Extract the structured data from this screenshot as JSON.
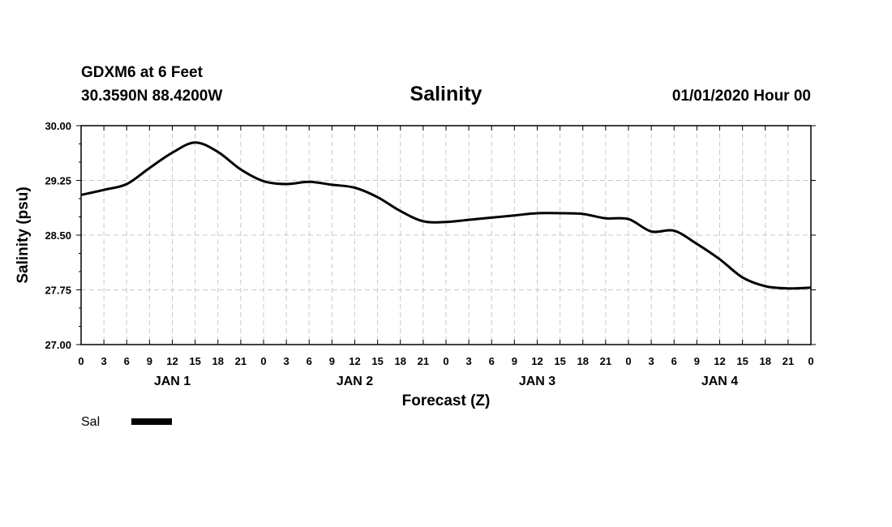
{
  "header": {
    "station_line1": "GDXM6 at 6 Feet",
    "station_line2": "30.3590N 88.4200W",
    "title": "Salinity",
    "datetime": "01/01/2020 Hour 00"
  },
  "chart_data": {
    "type": "line",
    "title": "Salinity",
    "xlabel": "Forecast (Z)",
    "ylabel": "Salinity (psu)",
    "ylim": [
      27.0,
      30.0
    ],
    "xlim": [
      0,
      96
    ],
    "grid": true,
    "yticks": [
      27.0,
      27.75,
      28.5,
      29.25,
      30.0
    ],
    "ytick_labels": [
      "27.00",
      "27.75",
      "28.50",
      "29.25",
      "30.00"
    ],
    "xtick_labels": [
      "0",
      "3",
      "6",
      "9",
      "12",
      "15",
      "18",
      "21",
      "0",
      "3",
      "6",
      "9",
      "12",
      "15",
      "18",
      "21",
      "0",
      "3",
      "6",
      "9",
      "12",
      "15",
      "18",
      "21",
      "0",
      "3",
      "6",
      "9",
      "12",
      "15",
      "18",
      "21",
      "0"
    ],
    "day_labels": [
      {
        "label": "JAN 1",
        "hour": 12
      },
      {
        "label": "JAN 2",
        "hour": 36
      },
      {
        "label": "JAN 3",
        "hour": 60
      },
      {
        "label": "JAN 4",
        "hour": 84
      }
    ],
    "series": [
      {
        "name": "Sal",
        "x": [
          0,
          3,
          6,
          9,
          12,
          15,
          18,
          21,
          24,
          27,
          30,
          33,
          36,
          39,
          42,
          45,
          48,
          51,
          54,
          57,
          60,
          63,
          66,
          69,
          72,
          75,
          78,
          81,
          84,
          87,
          90,
          93,
          96
        ],
        "values": [
          29.05,
          29.12,
          29.2,
          29.42,
          29.63,
          29.77,
          29.64,
          29.4,
          29.24,
          29.2,
          29.23,
          29.19,
          29.15,
          29.02,
          28.83,
          28.69,
          28.68,
          28.71,
          28.74,
          28.77,
          28.8,
          28.8,
          28.79,
          28.73,
          28.72,
          28.55,
          28.56,
          28.38,
          28.17,
          27.92,
          27.8,
          27.77,
          27.78
        ]
      }
    ],
    "legend_position": "bottom-left"
  }
}
